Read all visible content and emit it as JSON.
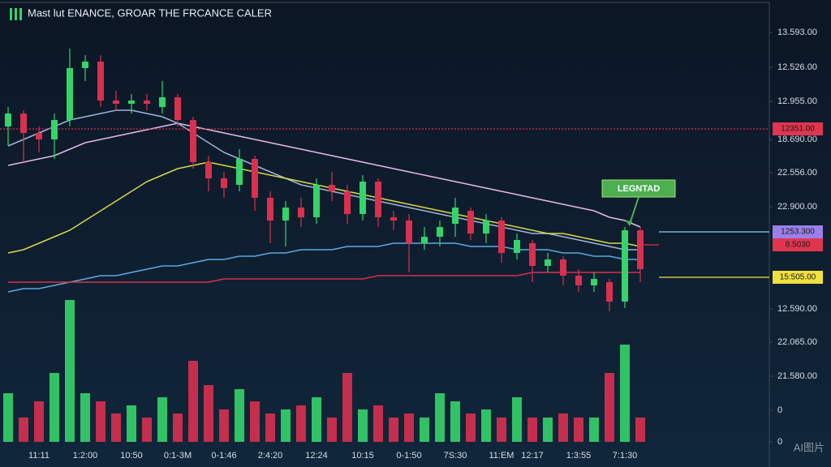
{
  "chart_data": {
    "type": "candlestick",
    "title": "Mast lut ENANCE, GROAR THE FRCANCE CALER",
    "categories": [
      null,
      null,
      "11:11",
      null,
      null,
      "1:2:00",
      null,
      null,
      "10:50",
      null,
      null,
      "0:1-3M",
      null,
      null,
      "0-1:46",
      null,
      null,
      "2:4:20",
      null,
      null,
      "12:24",
      null,
      null,
      "10:15",
      null,
      null,
      "0-1:50",
      null,
      null,
      "7S:30",
      null,
      null,
      "11:EM",
      null,
      "12:17",
      null,
      null,
      "1:3:55",
      null,
      null,
      "7:1:30",
      null
    ],
    "up_color": "#35d46a",
    "down_color": "#d9304f",
    "open": [
      66,
      70,
      64,
      62,
      68,
      84,
      86,
      74,
      73,
      74,
      72,
      75,
      68,
      55,
      50,
      48,
      56,
      44,
      37,
      41,
      38,
      48,
      46,
      39,
      49,
      38,
      37,
      30,
      32,
      36,
      40,
      33,
      37,
      27,
      30,
      23,
      25,
      20,
      17,
      18,
      12,
      34
    ],
    "high": [
      72,
      71,
      66,
      70,
      90,
      88,
      88,
      77,
      76,
      76,
      80,
      76,
      69,
      57,
      52,
      59,
      57,
      46,
      43,
      44,
      50,
      52,
      48,
      51,
      50,
      40,
      39,
      35,
      37,
      44,
      41,
      39,
      38,
      33,
      31,
      27,
      26,
      22,
      21,
      19,
      35,
      35
    ],
    "low": [
      60,
      55,
      58,
      56,
      66,
      80,
      72,
      71,
      70,
      71,
      70,
      66,
      53,
      46,
      44,
      46,
      40,
      30,
      29,
      35,
      36,
      43,
      36,
      37,
      35,
      34,
      21,
      28,
      29,
      32,
      31,
      30,
      24,
      25,
      18,
      21,
      17,
      15,
      15,
      9,
      10,
      18
    ],
    "close": [
      70,
      64,
      62,
      68,
      84,
      86,
      74,
      73,
      74,
      73,
      75,
      68,
      55,
      50,
      47,
      56,
      44,
      37,
      41,
      38,
      48,
      46,
      39,
      49,
      38,
      37,
      30,
      32,
      35,
      41,
      33,
      37,
      27,
      31,
      23,
      25,
      20,
      17,
      19,
      12,
      34,
      22
    ],
    "ylim": [
      0,
      105
    ],
    "yticks": [
      {
        "value": 95,
        "label": "13.593.00"
      },
      {
        "value": 84.25,
        "label": "12.526.00"
      },
      {
        "value": 73.75,
        "label": "12.955.00"
      },
      {
        "value": 62,
        "label": "18.690.00"
      },
      {
        "value": 51.75,
        "label": "22.556.00"
      },
      {
        "value": 41.25,
        "label": "22.900.00"
      },
      {
        "value": 9.75,
        "label": "12.590.00"
      }
    ],
    "lines": [
      {
        "color": "#e6b8e8",
        "values": [
          54,
          55,
          56,
          57,
          59,
          61,
          62,
          63,
          64,
          65,
          66,
          67,
          66,
          65,
          64,
          63,
          62,
          61,
          60,
          59,
          58,
          57,
          56,
          55,
          54,
          53,
          52,
          51,
          50,
          49,
          48,
          47,
          46,
          45,
          44,
          43,
          42,
          41,
          40,
          38,
          37,
          35
        ]
      },
      {
        "color": "#9fb4d8",
        "values": [
          60,
          62,
          64,
          66,
          68,
          69,
          70,
          71,
          71,
          70,
          69,
          67,
          64,
          61,
          58,
          56,
          54,
          52,
          50,
          48,
          47,
          46,
          45,
          44,
          43,
          42,
          41,
          40,
          39,
          38,
          37,
          36,
          35,
          34,
          33,
          33,
          32,
          31,
          30,
          29,
          28,
          28
        ]
      },
      {
        "color": "#d8d84a",
        "values": [
          27,
          28,
          30,
          32,
          34,
          37,
          40,
          43,
          46,
          49,
          51,
          53,
          54,
          55,
          54,
          53,
          52,
          51,
          50,
          49,
          48,
          47,
          46,
          45,
          44,
          43,
          42,
          41,
          40,
          39,
          38,
          37,
          36,
          35,
          34,
          33,
          33,
          32,
          31,
          30,
          30,
          29
        ]
      },
      {
        "color": "#5fa8e0",
        "values": [
          15,
          16,
          16,
          17,
          18,
          19,
          20,
          20,
          21,
          22,
          23,
          23,
          24,
          25,
          25,
          26,
          26,
          27,
          27,
          28,
          28,
          28,
          29,
          29,
          29,
          30,
          30,
          30,
          30,
          30,
          29,
          29,
          29,
          28,
          28,
          28,
          27,
          27,
          26,
          26,
          25,
          25
        ]
      },
      {
        "color": "#d9304f",
        "values": [
          18,
          18,
          18,
          18,
          18,
          18,
          18,
          18,
          18,
          18,
          18,
          18,
          18,
          18,
          19,
          19,
          19,
          19,
          19,
          19,
          19,
          19,
          19,
          19,
          20,
          20,
          20,
          20,
          20,
          20,
          20,
          20,
          20,
          20,
          21,
          21,
          21,
          21,
          21,
          21,
          21,
          21
        ]
      }
    ],
    "levels": [
      {
        "label": "12351.00",
        "value": 65.25,
        "color": "#e0354f",
        "line_color": "#d9304f",
        "dashed": true
      },
      {
        "label": "1253.300",
        "value": 33.5,
        "color": "#9b7fe8",
        "line_color": "#8ecbf0",
        "dashed": false
      },
      {
        "label": "8.5030",
        "value": 29.5,
        "color": "#e0354f",
        "line_color": "#d9304f",
        "dashed": false
      },
      {
        "label": "15:505.00",
        "value": 19.5,
        "color": "#f0e040",
        "line_color": "#f0e040",
        "dashed": false
      }
    ],
    "volume": {
      "values": [
        60,
        30,
        50,
        85,
        175,
        60,
        50,
        35,
        45,
        30,
        55,
        35,
        100,
        70,
        40,
        65,
        50,
        35,
        40,
        45,
        55,
        30,
        85,
        40,
        45,
        30,
        35,
        30,
        60,
        50,
        35,
        40,
        30,
        55,
        30,
        30,
        35,
        30,
        30,
        85,
        120,
        30
      ],
      "ylim": [
        0,
        200
      ],
      "yticks": [
        {
          "value": 123,
          "label": "22.065.00"
        },
        {
          "value": 81,
          "label": "21.580.00"
        },
        {
          "value": 39,
          "label": "0"
        },
        0
      ]
    },
    "annotation": {
      "text": "LEGNTAD",
      "color": "#4caf50"
    },
    "watermark": "AI图片"
  }
}
